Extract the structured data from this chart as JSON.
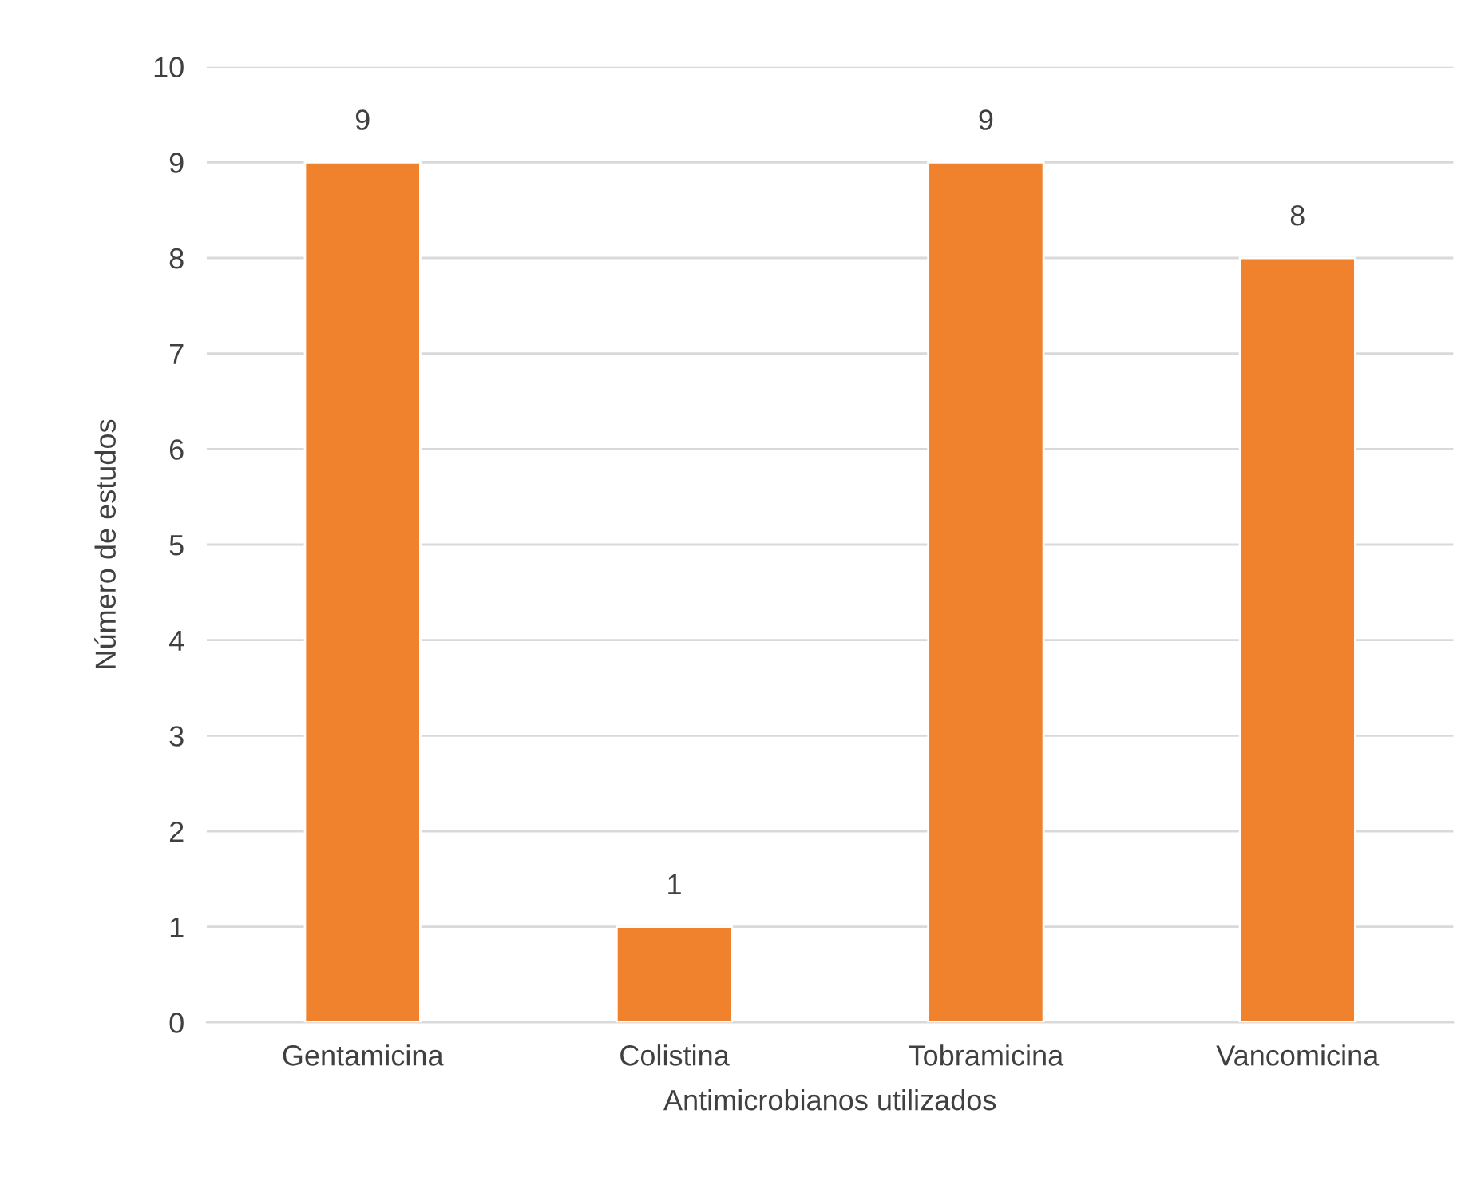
{
  "chart_data": {
    "type": "bar",
    "xlabel": "Antimicrobianos utilizados",
    "ylabel": "Número de estudos",
    "categories": [
      "Gentamicina",
      "Colistina",
      "Tobramicina",
      "Vancomicina"
    ],
    "values": [
      9,
      1,
      9,
      8
    ],
    "color": "#f0822e",
    "ylim": [
      0,
      10
    ],
    "yticks": [
      0,
      1,
      2,
      3,
      4,
      5,
      6,
      7,
      8,
      9,
      10
    ],
    "grid": "y",
    "data_labels": true
  }
}
